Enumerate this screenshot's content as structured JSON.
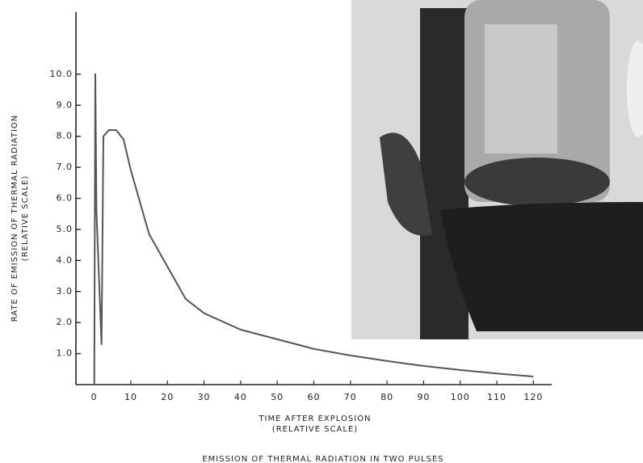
{
  "chart_data": {
    "type": "line",
    "title": "EMISSION OF THERMAL RADIATION IN TWO PULSES",
    "ylabel": [
      "RATE OF EMISSION OF THERMAL RADIATION",
      "(RELATIVE SCALE)"
    ],
    "xlabel": [
      "TIME AFTER EXPLOSION",
      "(RELATIVE SCALE)"
    ],
    "x": [
      0,
      0.3,
      0.6,
      2,
      2.5,
      4,
      6,
      8,
      10,
      15,
      20,
      25,
      30,
      40,
      50,
      60,
      70,
      80,
      90,
      100,
      110,
      120
    ],
    "series": [
      {
        "color": "#555555",
        "values": [
          0,
          10.0,
          5.6,
          1.3,
          8.0,
          8.2,
          8.2,
          7.9,
          6.9,
          4.85,
          3.8,
          2.76,
          2.3,
          1.77,
          1.46,
          1.15,
          0.94,
          0.76,
          0.6,
          0.47,
          0.36,
          0.26
        ]
      }
    ],
    "xlim": [
      -5,
      125
    ],
    "ylim": [
      0,
      12
    ],
    "xticks": [
      0,
      10,
      20,
      30,
      40,
      50,
      60,
      70,
      80,
      90,
      100,
      110,
      120
    ],
    "yticks": [
      {
        "value": 1,
        "label": "1.0"
      },
      {
        "value": 2,
        "label": "2.0"
      },
      {
        "value": 3,
        "label": "3.0"
      },
      {
        "value": 4,
        "label": "4.0"
      },
      {
        "value": 5,
        "label": "5.0"
      },
      {
        "value": 6,
        "label": "6.0"
      },
      {
        "value": 7,
        "label": "7.0"
      },
      {
        "value": 8,
        "label": "8.0"
      },
      {
        "value": 9,
        "label": "9.0"
      },
      {
        "value": 10,
        "label": "10.0"
      }
    ]
  }
}
